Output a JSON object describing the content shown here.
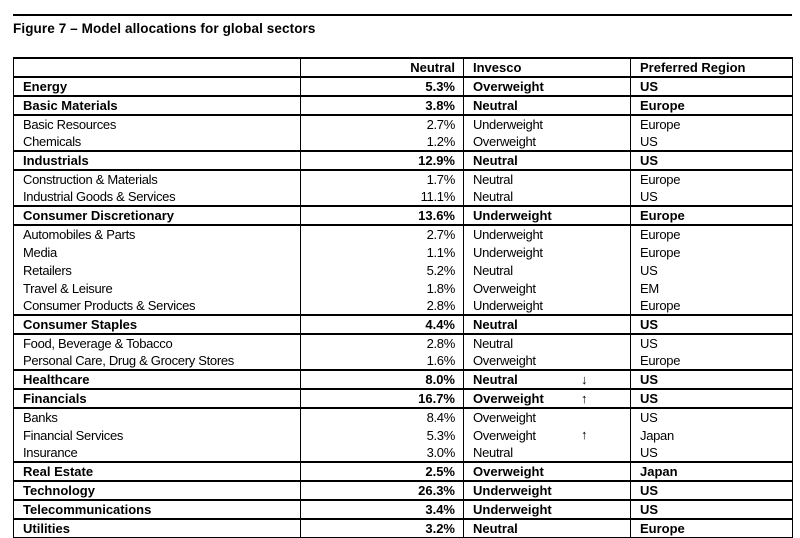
{
  "title": "Figure 7 – Model allocations for global sectors",
  "colors": {
    "background": "#ffffff",
    "text": "#000000",
    "border": "#000000"
  },
  "table": {
    "headers": {
      "sector": "",
      "neutral": "Neutral",
      "invesco": "Invesco",
      "region": "Preferred Region"
    },
    "rows": [
      {
        "sector": "Energy",
        "neutral": "5.3%",
        "invesco": "Overweight",
        "arrow": "",
        "region": "US",
        "bold": true
      },
      {
        "sector": "Basic Materials",
        "neutral": "3.8%",
        "invesco": "Neutral",
        "arrow": "",
        "region": "Europe",
        "bold": true
      },
      {
        "sector": "Basic Resources",
        "neutral": "2.7%",
        "invesco": "Underweight",
        "arrow": "",
        "region": "Europe",
        "bold": false
      },
      {
        "sector": "Chemicals",
        "neutral": "1.2%",
        "invesco": "Overweight",
        "arrow": "",
        "region": "US",
        "bold": false
      },
      {
        "sector": "Industrials",
        "neutral": "12.9%",
        "invesco": "Neutral",
        "arrow": "",
        "region": "US",
        "bold": true
      },
      {
        "sector": "Construction & Materials",
        "neutral": "1.7%",
        "invesco": "Neutral",
        "arrow": "",
        "region": "Europe",
        "bold": false
      },
      {
        "sector": "Industrial Goods & Services",
        "neutral": "11.1%",
        "invesco": "Neutral",
        "arrow": "",
        "region": "US",
        "bold": false
      },
      {
        "sector": "Consumer Discretionary",
        "neutral": "13.6%",
        "invesco": "Underweight",
        "arrow": "",
        "region": "Europe",
        "bold": true
      },
      {
        "sector": "Automobiles & Parts",
        "neutral": "2.7%",
        "invesco": "Underweight",
        "arrow": "",
        "region": "Europe",
        "bold": false
      },
      {
        "sector": "Media",
        "neutral": "1.1%",
        "invesco": "Underweight",
        "arrow": "",
        "region": "Europe",
        "bold": false
      },
      {
        "sector": "Retailers",
        "neutral": "5.2%",
        "invesco": "Neutral",
        "arrow": "",
        "region": "US",
        "bold": false
      },
      {
        "sector": "Travel & Leisure",
        "neutral": "1.8%",
        "invesco": "Overweight",
        "arrow": "",
        "region": "EM",
        "bold": false
      },
      {
        "sector": "Consumer Products & Services",
        "neutral": "2.8%",
        "invesco": "Underweight",
        "arrow": "",
        "region": "Europe",
        "bold": false
      },
      {
        "sector": "Consumer Staples",
        "neutral": "4.4%",
        "invesco": "Neutral",
        "arrow": "",
        "region": "US",
        "bold": true
      },
      {
        "sector": "Food, Beverage & Tobacco",
        "neutral": "2.8%",
        "invesco": "Neutral",
        "arrow": "",
        "region": "US",
        "bold": false
      },
      {
        "sector": "Personal Care, Drug & Grocery Stores",
        "neutral": "1.6%",
        "invesco": "Overweight",
        "arrow": "",
        "region": "Europe",
        "bold": false
      },
      {
        "sector": "Healthcare",
        "neutral": "8.0%",
        "invesco": "Neutral",
        "arrow": "↓",
        "region": "US",
        "bold": true
      },
      {
        "sector": "Financials",
        "neutral": "16.7%",
        "invesco": "Overweight",
        "arrow": "↑",
        "region": "US",
        "bold": true
      },
      {
        "sector": "Banks",
        "neutral": "8.4%",
        "invesco": "Overweight",
        "arrow": "",
        "region": "US",
        "bold": false
      },
      {
        "sector": "Financial Services",
        "neutral": "5.3%",
        "invesco": "Overweight",
        "arrow": "↑",
        "region": "Japan",
        "bold": false
      },
      {
        "sector": "Insurance",
        "neutral": "3.0%",
        "invesco": "Neutral",
        "arrow": "",
        "region": "US",
        "bold": false
      },
      {
        "sector": "Real Estate",
        "neutral": "2.5%",
        "invesco": "Overweight",
        "arrow": "",
        "region": "Japan",
        "bold": true
      },
      {
        "sector": "Technology",
        "neutral": "26.3%",
        "invesco": "Underweight",
        "arrow": "",
        "region": "US",
        "bold": true
      },
      {
        "sector": "Telecommunications",
        "neutral": "3.4%",
        "invesco": "Underweight",
        "arrow": "",
        "region": "US",
        "bold": true
      },
      {
        "sector": "Utilities",
        "neutral": "3.2%",
        "invesco": "Neutral",
        "arrow": "",
        "region": "Europe",
        "bold": true
      }
    ]
  }
}
